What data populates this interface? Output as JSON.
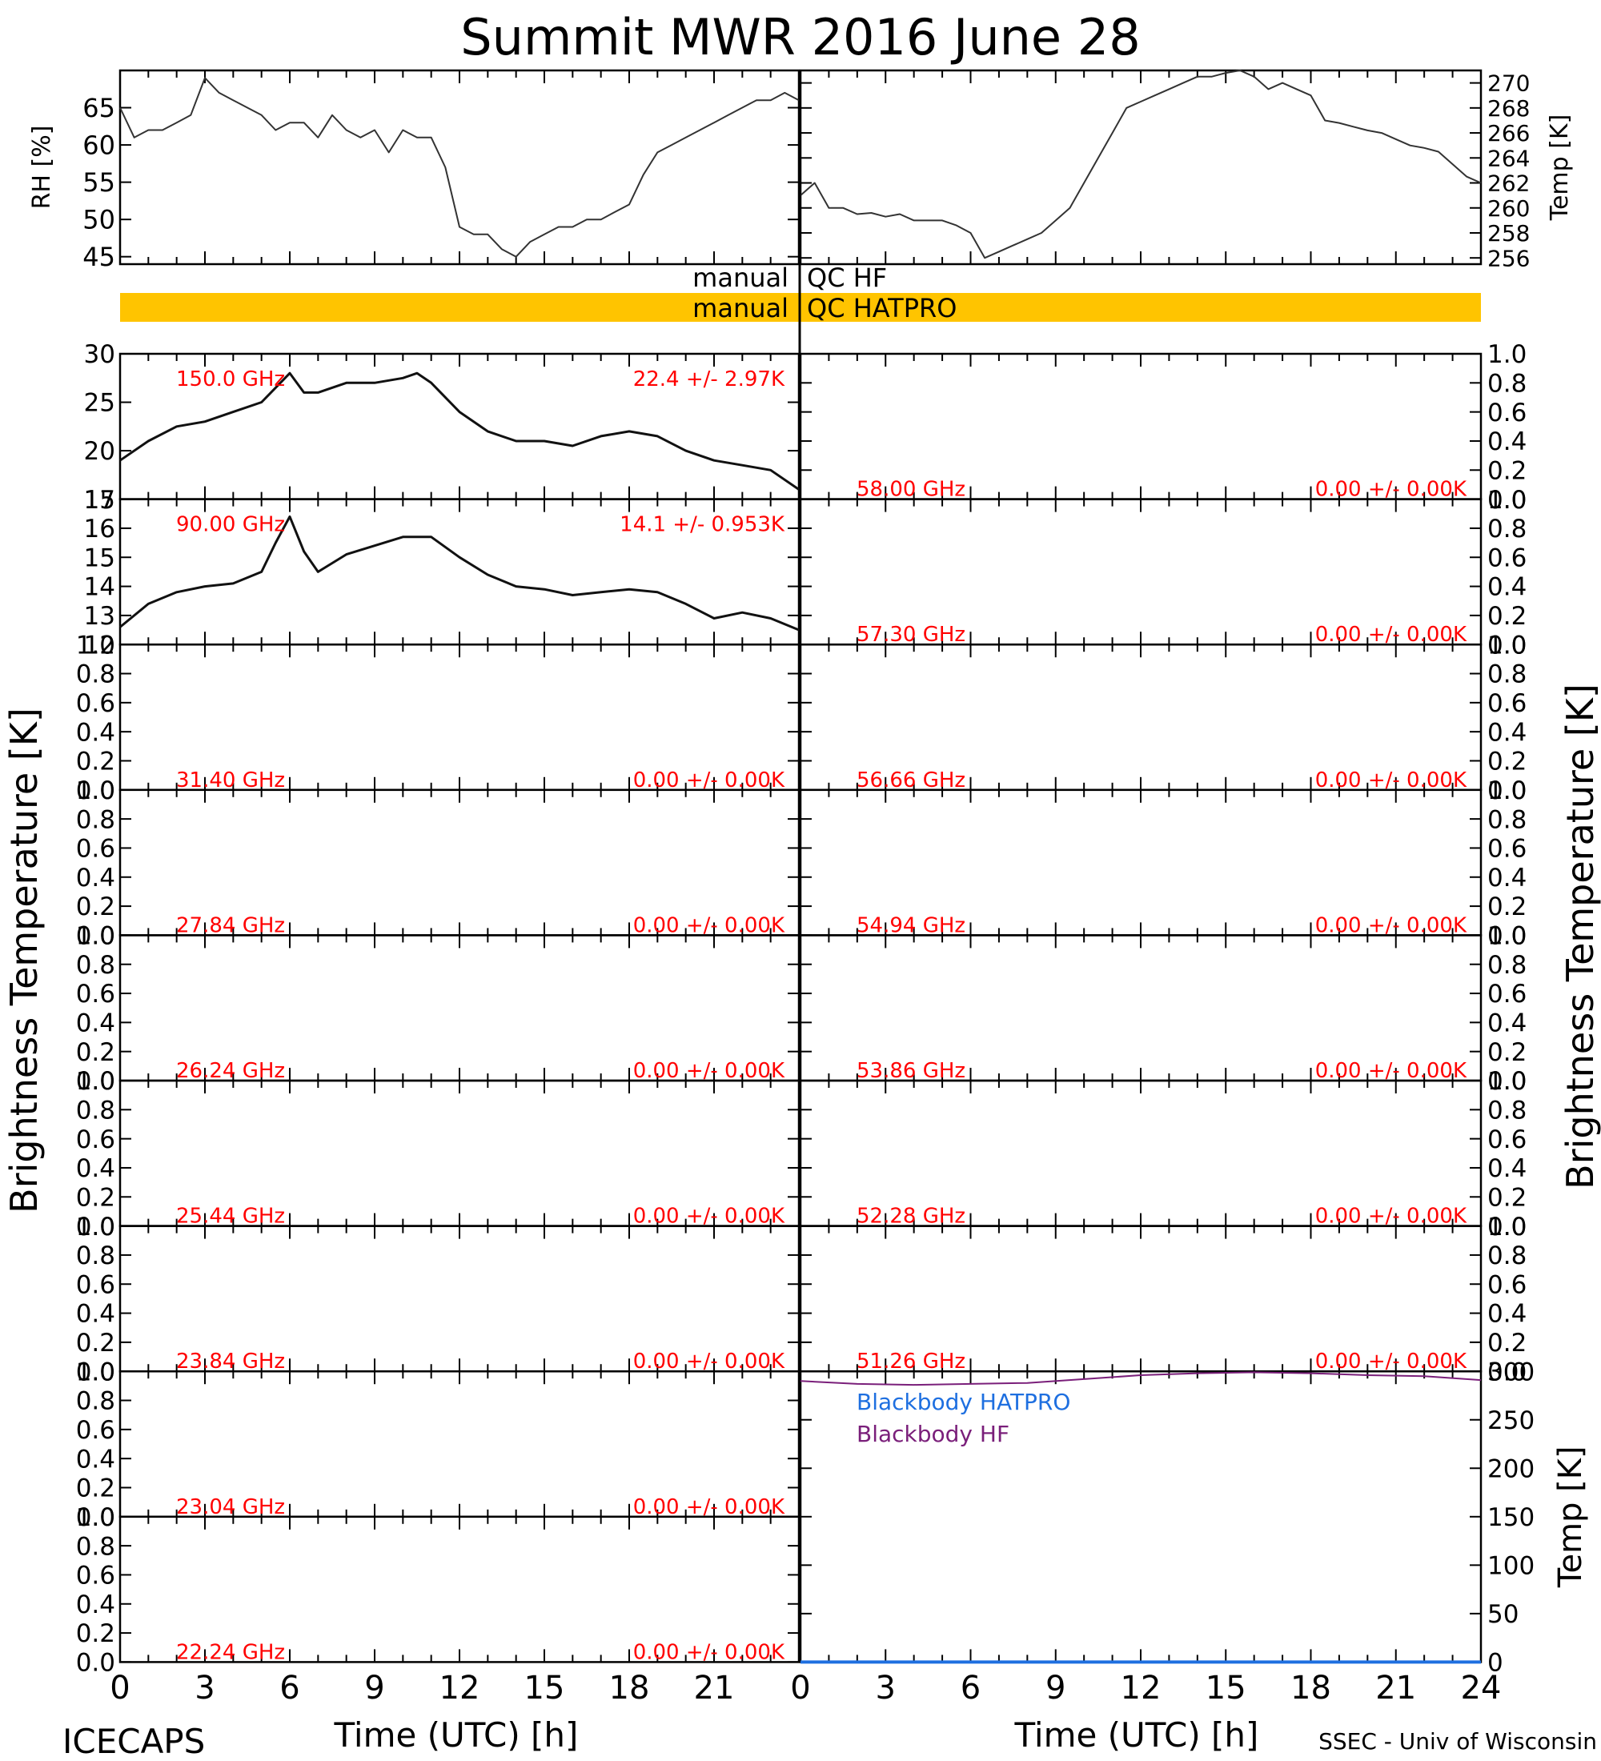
{
  "title": "Summit MWR 2016 June 28",
  "footer": {
    "left": "ICECAPS",
    "right": "SSEC - Univ of Wisconsin"
  },
  "colors": {
    "axis": "#000000",
    "channel_label": "#ff0000",
    "qc_bar": "#ffc400",
    "blackbody_hatpro": "#1e6fe0",
    "blackbody_hf": "#7a1f7a"
  },
  "chart_data": [
    {
      "id": "rh",
      "type": "line",
      "ylabel": "RH [%]",
      "xlim": [
        0,
        24
      ],
      "ylim": [
        44,
        70
      ],
      "yticks": [
        45,
        50,
        55,
        60,
        65
      ],
      "series": [
        {
          "x": [
            0,
            0.5,
            1,
            1.5,
            2,
            2.5,
            3,
            3.5,
            4,
            4.5,
            5,
            5.5,
            6,
            6.5,
            7,
            7.5,
            8,
            8.5,
            9,
            9.5,
            10,
            10.5,
            11,
            11.5,
            12,
            12.5,
            13,
            13.5,
            14,
            14.5,
            15,
            15.5,
            16,
            16.5,
            17,
            17.5,
            18,
            18.5,
            19,
            19.5,
            20,
            20.5,
            21,
            21.5,
            22,
            22.5,
            23,
            23.5,
            24
          ],
          "y": [
            65,
            61,
            62,
            62,
            63,
            64,
            69,
            67,
            66,
            65,
            64,
            62,
            63,
            63,
            61,
            64,
            62,
            61,
            62,
            59,
            62,
            61,
            61,
            57,
            49,
            48,
            48,
            46,
            45,
            47,
            48,
            49,
            49,
            50,
            50,
            51,
            52,
            56,
            59,
            60,
            61,
            62,
            63,
            64,
            65,
            66,
            66,
            67,
            66
          ]
        }
      ]
    },
    {
      "id": "temp",
      "type": "line",
      "ylabel": "Temp [K]",
      "xlim": [
        0,
        24
      ],
      "ylim": [
        255.5,
        271
      ],
      "yticks": [
        256,
        258,
        260,
        262,
        264,
        266,
        268,
        270
      ],
      "series": [
        {
          "x": [
            0,
            0.5,
            1,
            1.5,
            2,
            2.5,
            3,
            3.5,
            4,
            4.5,
            5,
            5.5,
            6,
            6.5,
            7,
            7.5,
            8,
            8.5,
            9,
            9.5,
            10,
            10.5,
            11,
            11.5,
            12,
            12.5,
            13,
            13.5,
            14,
            14.5,
            15,
            15.5,
            16,
            16.5,
            17,
            17.5,
            18,
            18.5,
            19,
            19.5,
            20,
            20.5,
            21,
            21.5,
            22,
            22.5,
            23,
            23.5,
            24
          ],
          "y": [
            261,
            262,
            260,
            260,
            259.5,
            259.6,
            259.3,
            259.5,
            259,
            259,
            259,
            258.6,
            258,
            256,
            256.5,
            257,
            257.5,
            258,
            259,
            260,
            262,
            264,
            266,
            268,
            268.5,
            269,
            269.5,
            270,
            270.5,
            270.5,
            270.8,
            271,
            270.5,
            269.5,
            270,
            269.5,
            269,
            267,
            266.8,
            266.5,
            266.2,
            266,
            265.5,
            265,
            264.8,
            264.5,
            263.5,
            262.5,
            262
          ]
        }
      ]
    },
    {
      "id": "qc",
      "type": "bar",
      "labels": [
        "manual",
        "QC HF",
        "manual",
        "QC HATPRO"
      ]
    },
    {
      "id": "tb-150",
      "type": "line",
      "channel": "150.0 GHz",
      "stats": "22.4 +/-  2.97K",
      "ylim": [
        15,
        30
      ],
      "yticks": [
        15,
        20,
        25,
        30
      ],
      "series": [
        {
          "x": [
            0,
            1,
            2,
            3,
            4,
            5,
            5.5,
            6,
            6.5,
            7,
            8,
            9,
            10,
            10.5,
            11,
            12,
            13,
            14,
            15,
            16,
            17,
            18,
            19,
            20,
            21,
            22,
            23,
            24
          ],
          "y": [
            19,
            21,
            22.5,
            23,
            24,
            25,
            26.5,
            28,
            26,
            26,
            27,
            27,
            27.5,
            28,
            27,
            24,
            22,
            21,
            21,
            20.5,
            21.5,
            22,
            21.5,
            20,
            19,
            18.5,
            18,
            16
          ]
        }
      ]
    },
    {
      "id": "tb-90",
      "type": "line",
      "channel": "90.00 GHz",
      "stats": "14.1 +/- 0.953K",
      "ylim": [
        12,
        17
      ],
      "yticks": [
        12,
        13,
        14,
        15,
        16,
        17
      ],
      "series": [
        {
          "x": [
            0,
            1,
            2,
            3,
            4,
            5,
            5.5,
            6,
            6.5,
            7,
            8,
            9,
            10,
            10.5,
            11,
            12,
            13,
            14,
            15,
            16,
            17,
            18,
            19,
            20,
            21,
            22,
            23,
            24
          ],
          "y": [
            12.6,
            13.4,
            13.8,
            14,
            14.1,
            14.5,
            15.5,
            16.4,
            15.2,
            14.5,
            15.1,
            15.4,
            15.7,
            15.7,
            15.7,
            15,
            14.4,
            14,
            13.9,
            13.7,
            13.8,
            13.9,
            13.8,
            13.4,
            12.9,
            13.1,
            12.9,
            12.5
          ]
        }
      ]
    },
    {
      "id": "tb-31",
      "type": "line",
      "channel": "31.40 GHz",
      "stats": "0.00 +/-  0.00K",
      "ylim": [
        0,
        1
      ],
      "yticks": [
        0.0,
        0.2,
        0.4,
        0.6,
        0.8,
        1.0
      ],
      "series": []
    },
    {
      "id": "tb-278",
      "type": "line",
      "channel": "27.84 GHz",
      "stats": "0.00 +/-  0.00K",
      "ylim": [
        0,
        1
      ],
      "yticks": [
        0.0,
        0.2,
        0.4,
        0.6,
        0.8,
        1.0
      ],
      "series": []
    },
    {
      "id": "tb-262",
      "type": "line",
      "channel": "26.24 GHz",
      "stats": "0.00 +/-  0.00K",
      "ylim": [
        0,
        1
      ],
      "yticks": [
        0.0,
        0.2,
        0.4,
        0.6,
        0.8,
        1.0
      ],
      "series": []
    },
    {
      "id": "tb-254",
      "type": "line",
      "channel": "25.44 GHz",
      "stats": "0.00 +/-  0.00K",
      "ylim": [
        0,
        1
      ],
      "yticks": [
        0.0,
        0.2,
        0.4,
        0.6,
        0.8,
        1.0
      ],
      "series": []
    },
    {
      "id": "tb-238",
      "type": "line",
      "channel": "23.84 GHz",
      "stats": "0.00 +/-  0.00K",
      "ylim": [
        0,
        1
      ],
      "yticks": [
        0.0,
        0.2,
        0.4,
        0.6,
        0.8,
        1.0
      ],
      "series": []
    },
    {
      "id": "tb-230",
      "type": "line",
      "channel": "23.04 GHz",
      "stats": "0.00 +/-  0.00K",
      "ylim": [
        0,
        1
      ],
      "yticks": [
        0.0,
        0.2,
        0.4,
        0.6,
        0.8,
        1.0
      ],
      "series": []
    },
    {
      "id": "tb-222",
      "type": "line",
      "channel": "22.24 GHz",
      "stats": "0.00 +/-  0.00K",
      "ylim": [
        0,
        1
      ],
      "yticks": [
        0.0,
        0.2,
        0.4,
        0.6,
        0.8,
        1.0
      ],
      "series": []
    },
    {
      "id": "tb-580",
      "type": "line",
      "channel": "58.00 GHz",
      "stats": "0.00 +/-  0.00K",
      "ylim": [
        0,
        1
      ],
      "yticks": [
        0.0,
        0.2,
        0.4,
        0.6,
        0.8,
        1.0
      ],
      "series": []
    },
    {
      "id": "tb-573",
      "type": "line",
      "channel": "57.30 GHz",
      "stats": "0.00 +/-  0.00K",
      "ylim": [
        0,
        1
      ],
      "yticks": [
        0.0,
        0.2,
        0.4,
        0.6,
        0.8,
        1.0
      ],
      "series": []
    },
    {
      "id": "tb-566",
      "type": "line",
      "channel": "56.66 GHz",
      "stats": "0.00 +/-  0.00K",
      "ylim": [
        0,
        1
      ],
      "yticks": [
        0.0,
        0.2,
        0.4,
        0.6,
        0.8,
        1.0
      ],
      "series": []
    },
    {
      "id": "tb-549",
      "type": "line",
      "channel": "54.94 GHz",
      "stats": "0.00 +/-  0.00K",
      "ylim": [
        0,
        1
      ],
      "yticks": [
        0.0,
        0.2,
        0.4,
        0.6,
        0.8,
        1.0
      ],
      "series": []
    },
    {
      "id": "tb-538",
      "type": "line",
      "channel": "53.86 GHz",
      "stats": "0.00 +/-  0.00K",
      "ylim": [
        0,
        1
      ],
      "yticks": [
        0.0,
        0.2,
        0.4,
        0.6,
        0.8,
        1.0
      ],
      "series": []
    },
    {
      "id": "tb-522",
      "type": "line",
      "channel": "52.28 GHz",
      "stats": "0.00 +/-  0.00K",
      "ylim": [
        0,
        1
      ],
      "yticks": [
        0.0,
        0.2,
        0.4,
        0.6,
        0.8,
        1.0
      ],
      "series": []
    },
    {
      "id": "tb-512",
      "type": "line",
      "channel": "51.26 GHz",
      "stats": "0.00 +/-  0.00K",
      "ylim": [
        0,
        1
      ],
      "yticks": [
        0.0,
        0.2,
        0.4,
        0.6,
        0.8,
        1.0
      ],
      "series": []
    },
    {
      "id": "blackbody",
      "type": "line",
      "ylabel": "Temp [K]",
      "xlim": [
        0,
        24
      ],
      "ylim": [
        0,
        300
      ],
      "yticks": [
        0,
        50,
        100,
        150,
        200,
        250,
        300
      ],
      "series": [
        {
          "name": "Blackbody HATPRO",
          "x": [
            0,
            24
          ],
          "y": [
            0,
            0
          ]
        },
        {
          "name": "Blackbody HF",
          "x": [
            0,
            2,
            4,
            6,
            8,
            10,
            12,
            14,
            16,
            18,
            20,
            22,
            24
          ],
          "y": [
            290,
            287,
            286,
            287,
            288,
            292,
            296,
            298,
            299,
            298,
            296,
            295,
            291
          ]
        }
      ]
    }
  ],
  "left_axis_label": "Brightness Temperature [K]",
  "right_axis_label": "Brightness Temperature [K]",
  "xaxis": {
    "label": "Time (UTC) [h]",
    "ticks": [
      0,
      3,
      6,
      9,
      12,
      15,
      18,
      21
    ],
    "ticks_right": [
      0,
      3,
      6,
      9,
      12,
      15,
      18,
      21,
      24
    ]
  }
}
